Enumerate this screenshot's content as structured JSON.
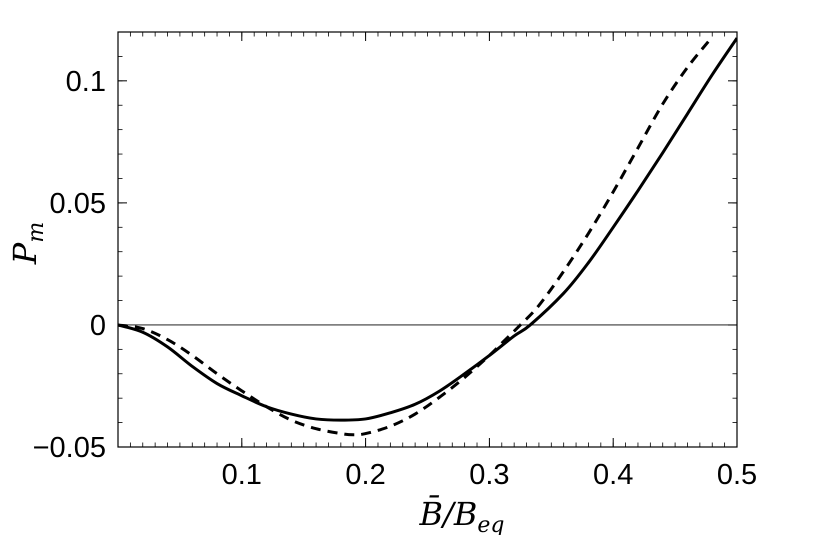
{
  "chart_data": {
    "type": "line",
    "title": "",
    "xlabel": "B̄/B",
    "xlabel_sub": "eq",
    "ylabel": "P",
    "ylabel_sub": "m",
    "xlim": [
      0.0,
      0.5
    ],
    "ylim": [
      -0.05,
      0.12
    ],
    "x_ticks": [
      0.1,
      0.2,
      0.3,
      0.4,
      0.5
    ],
    "x_tick_labels": [
      "0.1",
      "0.2",
      "0.3",
      "0.4",
      "0.5"
    ],
    "y_ticks": [
      -0.05,
      0,
      0.05,
      0.1
    ],
    "y_tick_labels": [
      "−0.05",
      "0",
      "0.05",
      "0.1"
    ],
    "reference_line_y": 0,
    "grid": false,
    "legend": "none",
    "series": [
      {
        "style": "solid",
        "color": "#000000",
        "x": [
          0.0,
          0.02,
          0.04,
          0.06,
          0.08,
          0.1,
          0.12,
          0.14,
          0.16,
          0.18,
          0.2,
          0.22,
          0.24,
          0.26,
          0.28,
          0.3,
          0.32,
          0.333,
          0.36,
          0.38,
          0.4,
          0.42,
          0.44,
          0.46,
          0.48,
          0.5
        ],
        "y": [
          0.0,
          -0.003,
          -0.009,
          -0.017,
          -0.024,
          -0.029,
          -0.0335,
          -0.0365,
          -0.0385,
          -0.039,
          -0.0385,
          -0.036,
          -0.0325,
          -0.027,
          -0.02,
          -0.0125,
          -0.0045,
          0.0,
          0.013,
          0.0255,
          0.04,
          0.055,
          0.0705,
          0.0865,
          0.1025,
          0.1175
        ]
      },
      {
        "style": "dashed",
        "color": "#000000",
        "x": [
          0.0,
          0.02,
          0.04,
          0.06,
          0.08,
          0.1,
          0.12,
          0.14,
          0.16,
          0.18,
          0.19,
          0.2,
          0.22,
          0.24,
          0.26,
          0.28,
          0.3,
          0.31,
          0.325,
          0.34,
          0.36,
          0.38,
          0.4,
          0.42,
          0.44,
          0.46,
          0.48
        ],
        "y": [
          0.0,
          -0.0015,
          -0.006,
          -0.0125,
          -0.02,
          -0.027,
          -0.0335,
          -0.039,
          -0.0425,
          -0.0445,
          -0.045,
          -0.0445,
          -0.0415,
          -0.0365,
          -0.0295,
          -0.0215,
          -0.0125,
          -0.0075,
          0.0,
          0.008,
          0.022,
          0.0375,
          0.0545,
          0.0725,
          0.0905,
          0.1055,
          0.118
        ]
      }
    ]
  }
}
